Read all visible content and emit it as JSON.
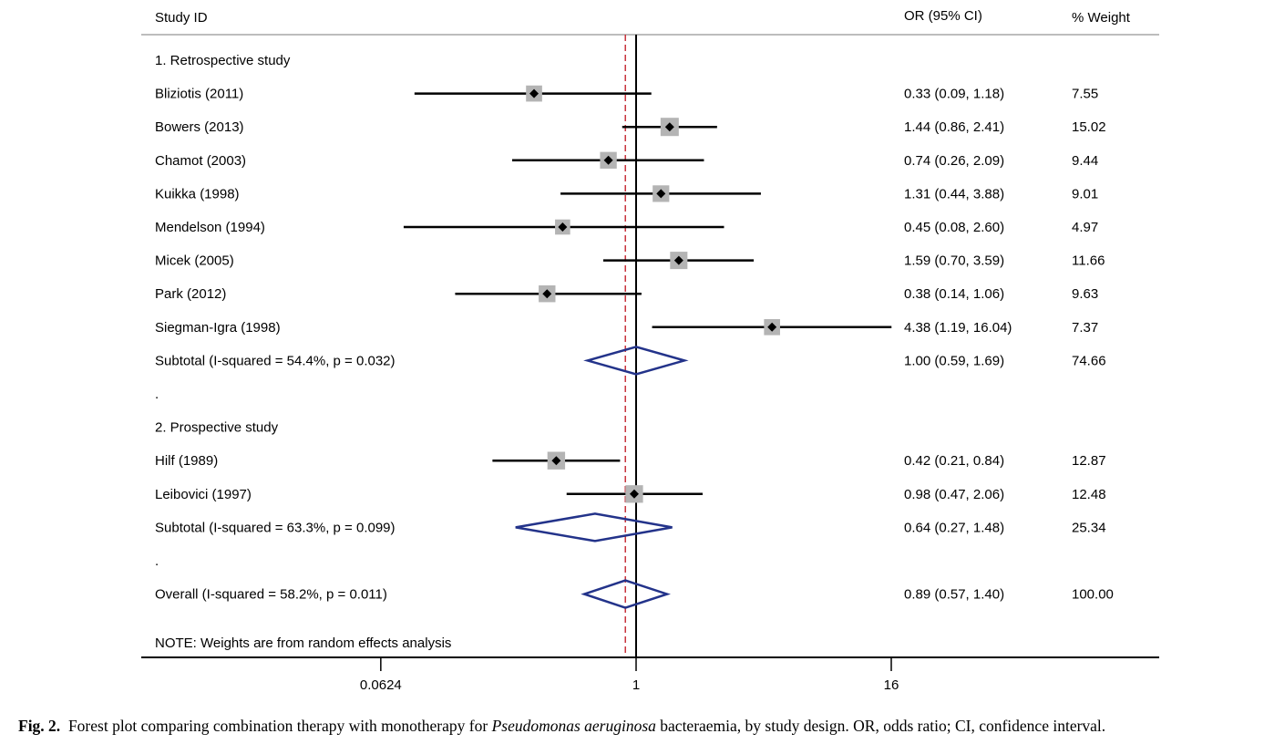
{
  "chart_data": {
    "type": "forest",
    "scale": "log",
    "headers": {
      "study": "Study ID",
      "or_ci": "OR (95% CI)",
      "weight": "% Weight"
    },
    "x_ticks": [
      {
        "value": 0.0624,
        "label": "0.0624"
      },
      {
        "value": 1,
        "label": "1"
      },
      {
        "value": 16,
        "label": "16"
      }
    ],
    "xlim": [
      0.0155,
      63
    ],
    "null_line": 1,
    "overall_line": 0.89,
    "colors": {
      "ci_line": "#000000",
      "weight_box": "#b4b4b4",
      "point": "#000000",
      "diamond": "#23338a",
      "overall_dashed": "#c8323c",
      "header_rule": "#bdbdbd"
    },
    "rows": [
      {
        "kind": "group",
        "label": "1. Retrospective study"
      },
      {
        "kind": "study",
        "label": "Bliziotis (2011)",
        "or": 0.33,
        "lo": 0.09,
        "hi": 1.18,
        "or_ci": "0.33 (0.09, 1.18)",
        "weight": "7.55"
      },
      {
        "kind": "study",
        "label": "Bowers (2013)",
        "or": 1.44,
        "lo": 0.86,
        "hi": 2.41,
        "or_ci": "1.44 (0.86, 2.41)",
        "weight": "15.02"
      },
      {
        "kind": "study",
        "label": "Chamot (2003)",
        "or": 0.74,
        "lo": 0.26,
        "hi": 2.09,
        "or_ci": "0.74 (0.26, 2.09)",
        "weight": "9.44"
      },
      {
        "kind": "study",
        "label": "Kuikka (1998)",
        "or": 1.31,
        "lo": 0.44,
        "hi": 3.88,
        "or_ci": "1.31 (0.44, 3.88)",
        "weight": "9.01"
      },
      {
        "kind": "study",
        "label": "Mendelson (1994)",
        "or": 0.45,
        "lo": 0.08,
        "hi": 2.6,
        "or_ci": "0.45 (0.08, 2.60)",
        "weight": "4.97"
      },
      {
        "kind": "study",
        "label": "Micek (2005)",
        "or": 1.59,
        "lo": 0.7,
        "hi": 3.59,
        "or_ci": "1.59 (0.70, 3.59)",
        "weight": "11.66"
      },
      {
        "kind": "study",
        "label": "Park (2012)",
        "or": 0.38,
        "lo": 0.14,
        "hi": 1.06,
        "or_ci": "0.38 (0.14, 1.06)",
        "weight": "9.63"
      },
      {
        "kind": "study",
        "label": "Siegman-Igra (1998)",
        "or": 4.38,
        "lo": 1.19,
        "hi": 16.04,
        "or_ci": "4.38 (1.19, 16.04)",
        "weight": "7.37"
      },
      {
        "kind": "subtotal",
        "label": "Subtotal  (I-squared = 54.4%, p = 0.032)",
        "or": 1.0,
        "lo": 0.59,
        "hi": 1.69,
        "or_ci": "1.00 (0.59, 1.69)",
        "weight": "74.66"
      },
      {
        "kind": "spacer",
        "label": "."
      },
      {
        "kind": "group",
        "label": "2. Prospective study"
      },
      {
        "kind": "study",
        "label": "Hilf (1989)",
        "or": 0.42,
        "lo": 0.21,
        "hi": 0.84,
        "or_ci": "0.42 (0.21, 0.84)",
        "weight": "12.87"
      },
      {
        "kind": "study",
        "label": "Leibovici (1997)",
        "or": 0.98,
        "lo": 0.47,
        "hi": 2.06,
        "or_ci": "0.98 (0.47, 2.06)",
        "weight": "12.48"
      },
      {
        "kind": "subtotal",
        "label": "Subtotal  (I-squared = 63.3%, p = 0.099)",
        "or": 0.64,
        "lo": 0.27,
        "hi": 1.48,
        "or_ci": "0.64 (0.27, 1.48)",
        "weight": "25.34"
      },
      {
        "kind": "spacer",
        "label": "."
      },
      {
        "kind": "overall",
        "label": "Overall  (I-squared = 58.2%, p = 0.011)",
        "or": 0.89,
        "lo": 0.57,
        "hi": 1.4,
        "or_ci": "0.89 (0.57, 1.40)",
        "weight": "100.00"
      }
    ],
    "note": "NOTE: Weights are from random effects analysis"
  },
  "caption": {
    "label": "Fig. 2.",
    "text_before": "Forest plot comparing combination therapy with monotherapy for ",
    "italic": "Pseudomonas aeruginosa",
    "text_after": " bacteraemia, by study design. OR, odds ratio; CI, confidence interval."
  }
}
